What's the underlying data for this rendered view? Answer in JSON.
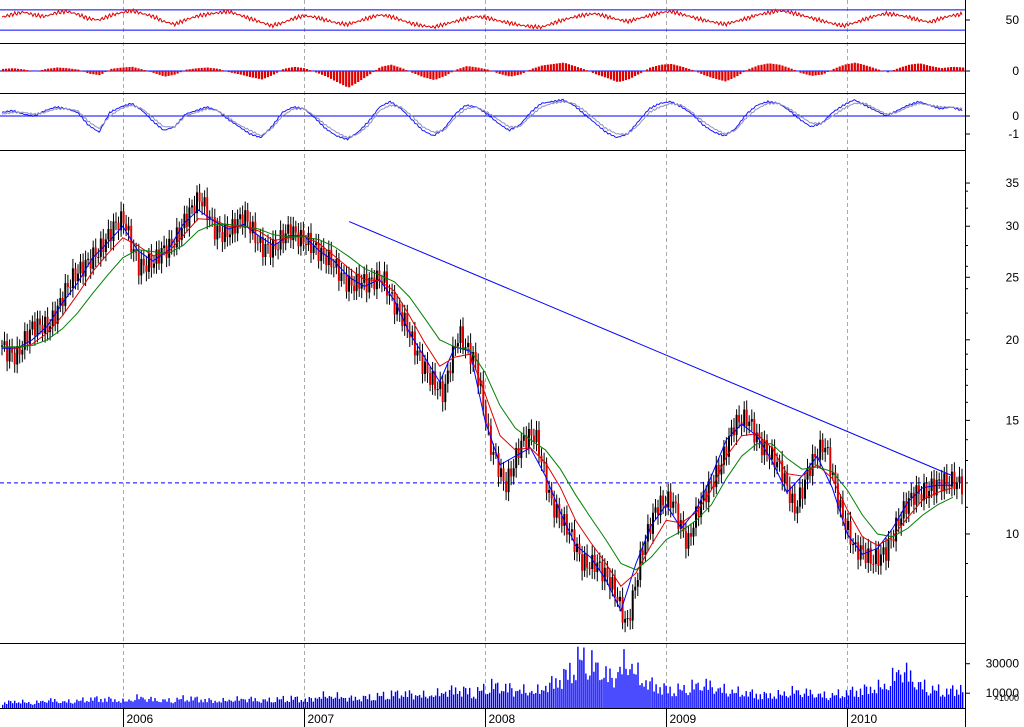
{
  "chart_data": [
    {
      "panel": "rsi",
      "type": "line",
      "y_ticks": [
        "50"
      ],
      "reference_lines": [
        64,
        36
      ],
      "series": [
        {
          "color": "#e00000",
          "values": [
            54,
            58,
            61,
            57,
            55,
            60,
            62,
            58,
            52,
            50,
            56,
            60,
            63,
            59,
            55,
            48,
            44,
            50,
            55,
            58,
            60,
            62,
            57,
            52,
            47,
            42,
            46,
            52,
            56,
            54,
            50,
            46,
            44,
            48,
            53,
            57,
            55,
            50,
            45,
            42,
            40,
            44,
            48,
            52,
            55,
            53,
            49,
            46,
            43,
            41,
            40,
            45,
            50,
            54,
            57,
            59,
            55,
            51,
            48,
            52,
            56,
            60,
            62,
            58,
            54,
            50,
            47,
            44,
            48,
            52,
            57,
            60,
            63,
            61,
            57,
            53,
            49,
            45,
            42,
            46,
            51,
            56,
            59,
            57,
            54,
            50,
            47,
            52,
            56,
            58
          ]
        }
      ]
    },
    {
      "panel": "macd_histogram",
      "type": "bar",
      "y_ticks": [
        "0"
      ],
      "series": [
        {
          "color": "#e00000",
          "values": [
            0.3,
            0.4,
            0.2,
            -0.1,
            0.3,
            0.5,
            0.4,
            0.2,
            -0.4,
            -0.6,
            0.3,
            0.5,
            0.6,
            0.2,
            -0.3,
            -0.8,
            -0.5,
            0.2,
            0.4,
            0.5,
            0.3,
            -0.2,
            -0.5,
            -0.9,
            -1.2,
            -0.6,
            0.3,
            0.6,
            0.4,
            -0.2,
            -0.8,
            -1.6,
            -2.4,
            -1.5,
            -0.5,
            0.6,
            0.9,
            0.4,
            -0.3,
            -0.9,
            -1.3,
            -0.7,
            0.2,
            0.7,
            0.5,
            0.2,
            -0.4,
            -0.8,
            -0.5,
            0.3,
            0.8,
            1.0,
            1.2,
            0.7,
            0.2,
            -0.5,
            -1.0,
            -1.6,
            -1.2,
            -0.4,
            0.5,
            0.9,
            1.0,
            0.6,
            0.1,
            -0.6,
            -1.1,
            -1.5,
            -0.8,
            0.2,
            0.8,
            1.1,
            0.9,
            0.4,
            -0.3,
            -0.7,
            -0.5,
            0.3,
            0.9,
            1.2,
            0.8,
            0.3,
            -0.2,
            0.4,
            0.9,
            1.1,
            0.7,
            0.4,
            0.6,
            0.5
          ]
        }
      ]
    },
    {
      "panel": "oscillator",
      "type": "line",
      "y_ticks": [
        "0",
        "-1"
      ],
      "reference_lines": [
        0
      ],
      "series": [
        {
          "color": "#1a1aff",
          "values": [
            0.2,
            0.3,
            0.1,
            0.0,
            0.3,
            0.5,
            0.4,
            0.2,
            -0.5,
            -0.9,
            0.2,
            0.5,
            0.7,
            0.3,
            -0.3,
            -0.8,
            -0.6,
            0.1,
            0.3,
            0.5,
            0.3,
            -0.2,
            -0.6,
            -1.0,
            -1.2,
            -0.6,
            0.2,
            0.5,
            0.4,
            -0.1,
            -0.7,
            -1.1,
            -1.3,
            -0.9,
            -0.3,
            0.5,
            0.8,
            0.4,
            -0.2,
            -0.8,
            -1.1,
            -0.7,
            0.1,
            0.6,
            0.5,
            0.1,
            -0.4,
            -0.8,
            -0.5,
            0.2,
            0.7,
            0.8,
            0.9,
            0.6,
            0.1,
            -0.4,
            -0.9,
            -1.2,
            -1.0,
            -0.3,
            0.4,
            0.7,
            0.8,
            0.5,
            0.1,
            -0.5,
            -0.9,
            -1.1,
            -0.7,
            0.1,
            0.6,
            0.8,
            0.7,
            0.3,
            -0.2,
            -0.6,
            -0.4,
            0.2,
            0.6,
            0.9,
            0.6,
            0.3,
            0.0,
            0.3,
            0.6,
            0.8,
            0.6,
            0.4,
            0.5,
            0.3
          ]
        },
        {
          "color": "#9090c0",
          "values": [
            0.1,
            0.2,
            0.2,
            0.1,
            0.2,
            0.4,
            0.4,
            0.3,
            -0.3,
            -0.7,
            0.0,
            0.4,
            0.6,
            0.4,
            -0.1,
            -0.6,
            -0.6,
            0.0,
            0.2,
            0.4,
            0.3,
            -0.1,
            -0.5,
            -0.8,
            -1.1,
            -0.7,
            0.0,
            0.4,
            0.4,
            0.0,
            -0.5,
            -0.9,
            -1.2,
            -1.0,
            -0.5,
            0.3,
            0.6,
            0.5,
            0.0,
            -0.6,
            -0.9,
            -0.8,
            -0.1,
            0.4,
            0.5,
            0.2,
            -0.2,
            -0.6,
            -0.6,
            0.0,
            0.5,
            0.7,
            0.8,
            0.7,
            0.3,
            -0.2,
            -0.7,
            -1.0,
            -1.0,
            -0.5,
            0.2,
            0.5,
            0.7,
            0.6,
            0.2,
            -0.3,
            -0.7,
            -1.0,
            -0.8,
            -0.1,
            0.4,
            0.7,
            0.7,
            0.4,
            0.0,
            -0.4,
            -0.4,
            0.0,
            0.4,
            0.7,
            0.7,
            0.4,
            0.1,
            0.2,
            0.5,
            0.7,
            0.6,
            0.5,
            0.5,
            0.4
          ]
        }
      ]
    },
    {
      "panel": "price",
      "type": "line",
      "scale": "log",
      "y_ticks": [
        "35",
        "30",
        "25",
        "20",
        "15",
        "10"
      ],
      "ylim": [
        6.8,
        38
      ],
      "x": [
        "2005-05",
        "2005-06",
        "2005-07",
        "2005-08",
        "2005-09",
        "2005-10",
        "2005-11",
        "2005-12",
        "2006-01",
        "2006-02",
        "2006-03",
        "2006-04",
        "2006-05",
        "2006-06",
        "2006-07",
        "2006-08",
        "2006-09",
        "2006-10",
        "2006-11",
        "2006-12",
        "2007-01",
        "2007-02",
        "2007-03",
        "2007-04",
        "2007-05",
        "2007-06",
        "2007-07",
        "2007-08",
        "2007-09",
        "2007-10",
        "2007-11",
        "2007-12",
        "2008-01",
        "2008-02",
        "2008-03",
        "2008-04",
        "2008-05",
        "2008-06",
        "2008-07",
        "2008-08",
        "2008-09",
        "2008-10",
        "2008-11",
        "2008-12",
        "2009-01",
        "2009-02",
        "2009-03",
        "2009-04",
        "2009-05",
        "2009-06",
        "2009-07",
        "2009-08",
        "2009-09",
        "2009-10",
        "2009-11",
        "2009-12",
        "2010-01",
        "2010-02",
        "2010-03",
        "2010-04",
        "2010-05",
        "2010-06",
        "2010-07",
        "2010-08"
      ],
      "series": [
        {
          "name": "",
          "color": "#000000",
          "values": [
            19.6,
            19.2,
            20.5,
            21.2,
            23.5,
            25.0,
            27.5,
            28.8,
            30.5,
            26.5,
            26.0,
            28.0,
            31.0,
            32.5,
            30.0,
            29.5,
            30.5,
            28.5,
            27.5,
            29.5,
            29.0,
            26.5,
            26.0,
            24.5,
            24.0,
            25.5,
            22.0,
            19.5,
            18.0,
            16.2,
            20.5,
            19.0,
            13.5,
            12.0,
            13.8,
            14.0,
            11.5,
            10.2,
            9.0,
            9.2,
            8.2,
            7.2,
            9.5,
            10.8,
            11.5,
            9.6,
            11.2,
            12.8,
            14.5,
            15.0,
            13.8,
            12.5,
            11.0,
            12.8,
            13.5,
            11.2,
            9.4,
            9.0,
            9.6,
            10.5,
            11.6,
            12.0,
            11.8,
            12.1
          ]
        },
        {
          "name": "",
          "color": "#0000ff",
          "values": [
            19.4,
            19.4,
            20.0,
            21.0,
            22.8,
            24.5,
            26.8,
            28.3,
            30.0,
            27.5,
            26.5,
            27.5,
            30.2,
            31.8,
            30.6,
            29.7,
            30.2,
            29.0,
            28.0,
            29.0,
            29.0,
            27.5,
            26.5,
            25.0,
            24.2,
            24.8,
            23.0,
            20.5,
            18.8,
            17.2,
            19.5,
            19.2,
            15.0,
            12.8,
            13.2,
            13.6,
            12.3,
            10.8,
            9.6,
            9.2,
            8.5,
            7.6,
            9.0,
            10.3,
            11.1,
            10.2,
            10.9,
            12.3,
            14.0,
            14.8,
            14.2,
            13.0,
            11.6,
            12.3,
            13.2,
            11.8,
            10.0,
            9.3,
            9.5,
            10.2,
            11.2,
            11.8,
            11.9,
            11.9
          ]
        },
        {
          "name": "",
          "color": "#e00000",
          "values": [
            19.5,
            19.4,
            19.7,
            20.5,
            21.8,
            23.5,
            25.5,
            27.2,
            28.8,
            28.0,
            27.0,
            27.3,
            29.0,
            30.8,
            30.7,
            30.0,
            30.0,
            29.5,
            28.5,
            28.8,
            29.0,
            28.2,
            27.0,
            25.8,
            24.8,
            24.7,
            23.8,
            21.8,
            19.8,
            18.2,
            18.8,
            19.0,
            16.5,
            14.2,
            13.5,
            13.6,
            12.9,
            11.8,
            10.5,
            9.7,
            9.0,
            8.3,
            8.7,
            9.6,
            10.5,
            10.4,
            10.8,
            11.7,
            13.2,
            14.2,
            14.3,
            13.6,
            12.4,
            12.3,
            12.8,
            12.2,
            10.9,
            9.9,
            9.6,
            9.9,
            10.6,
            11.3,
            11.6,
            11.8
          ]
        },
        {
          "name": "",
          "color": "#008000",
          "values": [
            19.5,
            19.5,
            19.6,
            20.0,
            20.8,
            22.0,
            23.6,
            25.2,
            26.8,
            27.6,
            27.4,
            27.2,
            28.0,
            29.5,
            30.2,
            30.2,
            30.0,
            29.7,
            29.1,
            28.9,
            28.9,
            28.6,
            27.9,
            26.9,
            25.8,
            25.2,
            24.6,
            23.3,
            21.6,
            20.0,
            19.5,
            19.3,
            17.8,
            15.8,
            14.6,
            14.0,
            13.5,
            12.6,
            11.5,
            10.6,
            9.8,
            9.0,
            8.8,
            9.2,
            9.8,
            10.1,
            10.5,
            11.1,
            12.2,
            13.2,
            13.8,
            13.8,
            13.1,
            12.6,
            12.7,
            12.5,
            11.7,
            10.7,
            10.0,
            9.9,
            10.2,
            10.7,
            11.1,
            11.4
          ]
        }
      ],
      "annotations": [
        {
          "type": "trendline",
          "color": "#0000ff",
          "from": {
            "x": "2007-04",
            "y": 30.5
          },
          "to": {
            "x": "2010-08",
            "y": 12.3
          }
        },
        {
          "type": "horizontal_line",
          "color": "#0000ff",
          "style": "dashed",
          "y": 12.0
        }
      ]
    },
    {
      "panel": "volume",
      "type": "bar",
      "y_ticks": [
        "30000",
        "10000"
      ],
      "unit_label": "×1000",
      "ylim": [
        0,
        42000
      ],
      "series": [
        {
          "color": "#0000ff",
          "values": [
            4000,
            5000,
            3500,
            6000,
            4500,
            5500,
            7000,
            6500,
            5000,
            8000,
            6000,
            5500,
            7500,
            6500,
            5000,
            6000,
            7000,
            5500,
            6500,
            7500,
            6000,
            9000,
            8500,
            7000,
            8000,
            9500,
            11000,
            10000,
            9000,
            12000,
            14000,
            11000,
            17000,
            15000,
            13000,
            12000,
            18000,
            25000,
            38000,
            30000,
            22000,
            35000,
            20000,
            16000,
            13000,
            15000,
            18000,
            14000,
            12000,
            11000,
            9500,
            10000,
            12500,
            11000,
            9000,
            10500,
            13000,
            14500,
            16500,
            30000,
            18000,
            14000,
            12000,
            16000
          ]
        }
      ]
    }
  ],
  "x_axis": {
    "year_labels": [
      "2006",
      "2007",
      "2008",
      "2009",
      "2010"
    ]
  }
}
